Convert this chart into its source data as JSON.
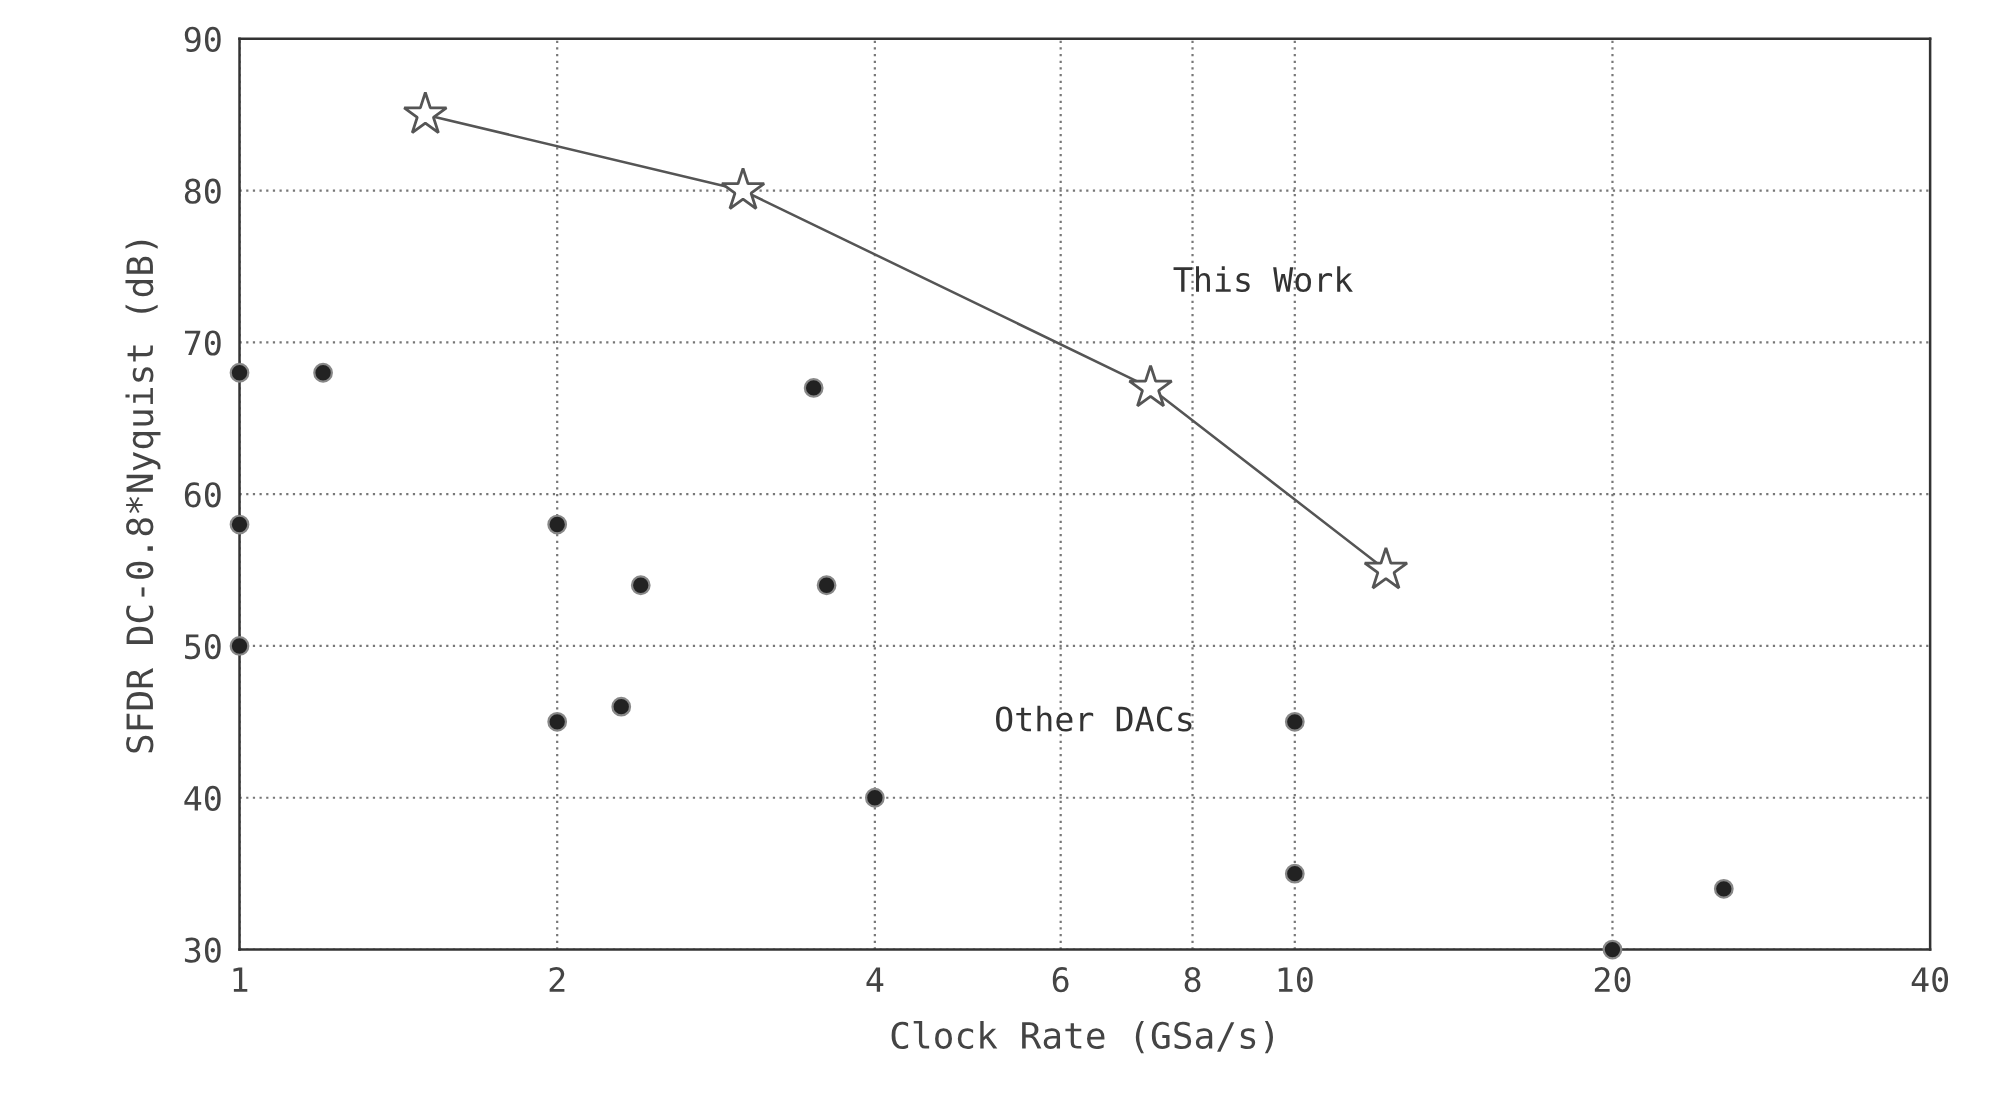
{
  "chart_data": {
    "type": "scatter",
    "xlabel": "Clock Rate (GSa/s)",
    "ylabel": "SFDR DC-0.8*Nyquist (dB)",
    "log": "x",
    "xlim": [
      1,
      40
    ],
    "xticks": [
      1,
      2,
      4,
      6,
      8,
      10,
      20,
      40
    ],
    "ylim": [
      30,
      90
    ],
    "yticks": [
      30,
      40,
      50,
      60,
      70,
      80,
      90
    ],
    "grid": true,
    "legend": false,
    "series": [
      {
        "name": "This Work",
        "type": "line",
        "marker": "star",
        "line_style": "solid",
        "color": "#555555",
        "x": [
          1.5,
          3,
          7.3,
          12.2
        ],
        "values": [
          85,
          80,
          67,
          55
        ]
      },
      {
        "name": "Other DACs",
        "marker": "circle",
        "color": "#222222",
        "x": [
          1,
          1.2,
          1,
          1,
          2,
          2,
          2.3,
          2.4,
          3.5,
          3.6,
          4,
          10,
          10,
          20,
          25.5
        ],
        "values": [
          68,
          68,
          58,
          50,
          58,
          45,
          46,
          54,
          67,
          54,
          40,
          45,
          35,
          30,
          34
        ]
      }
    ]
  }
}
